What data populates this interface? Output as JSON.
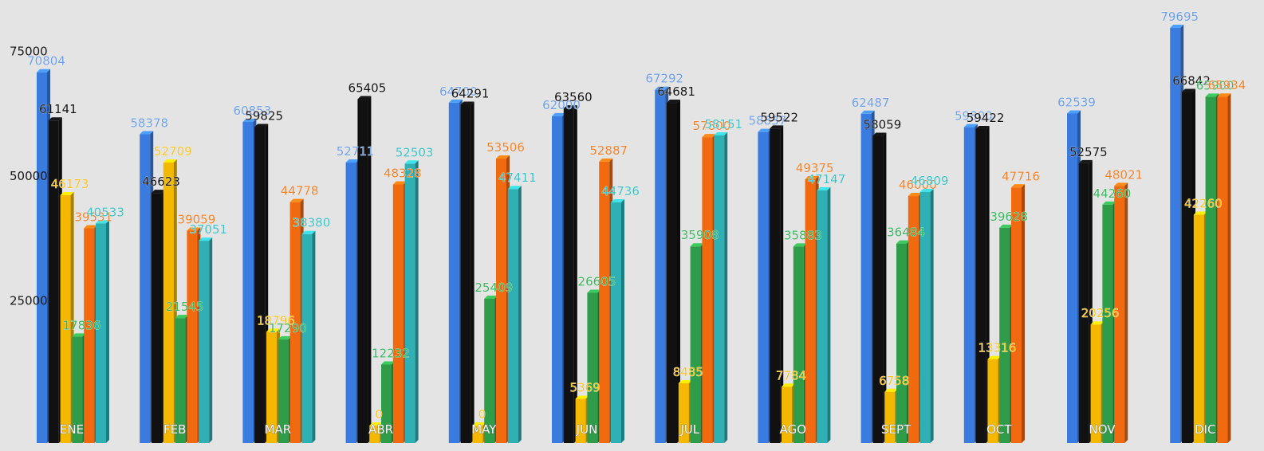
{
  "chart_data": {
    "type": "bar",
    "categories": [
      "ENE",
      "FEB",
      "MAR",
      "ABR",
      "MAY",
      "JUN",
      "JUL",
      "AGO",
      "SEPT",
      "OCT",
      "NOV",
      "DIC"
    ],
    "yticks": [
      25000,
      50000,
      75000
    ],
    "ylim": [
      -3500,
      86000
    ],
    "grid": false,
    "legend": "none",
    "series": [
      {
        "color": "#3a7be0",
        "label_color": "#6d9ee8",
        "values": [
          70804,
          58378,
          60853,
          52711,
          64700,
          62000,
          67292,
          58837,
          62487,
          59800,
          62539,
          79695
        ]
      },
      {
        "color": "#111111",
        "label_color": "#111111",
        "values": [
          61141,
          46623,
          59825,
          65405,
          64291,
          63560,
          64681,
          59522,
          58059,
          59422,
          52575,
          66842
        ]
      },
      {
        "color": "#f5b800",
        "label_color": "#f7c325",
        "values": [
          46173,
          52709,
          18796,
          0,
          0,
          5369,
          8485,
          7784,
          6758,
          13316,
          20256,
          42260
        ]
      },
      {
        "color": "#2e9c48",
        "label_color": "#3cb460",
        "values": [
          17836,
          21545,
          17290,
          12232,
          25409,
          26605,
          35908,
          35883,
          36484,
          39628,
          44260,
          65900
        ]
      },
      {
        "color": "#f26a10",
        "label_color": "#f2812a",
        "values": [
          39531,
          39059,
          44778,
          48328,
          53506,
          52887,
          57800,
          49375,
          46000,
          47716,
          48021,
          65934
        ]
      },
      {
        "color": "#2fb0b4",
        "label_color": "#3cc0c4",
        "values": [
          40533,
          37051,
          38380,
          52503,
          47411,
          44736,
          58151,
          47147,
          46809,
          null,
          null,
          null
        ]
      }
    ]
  }
}
